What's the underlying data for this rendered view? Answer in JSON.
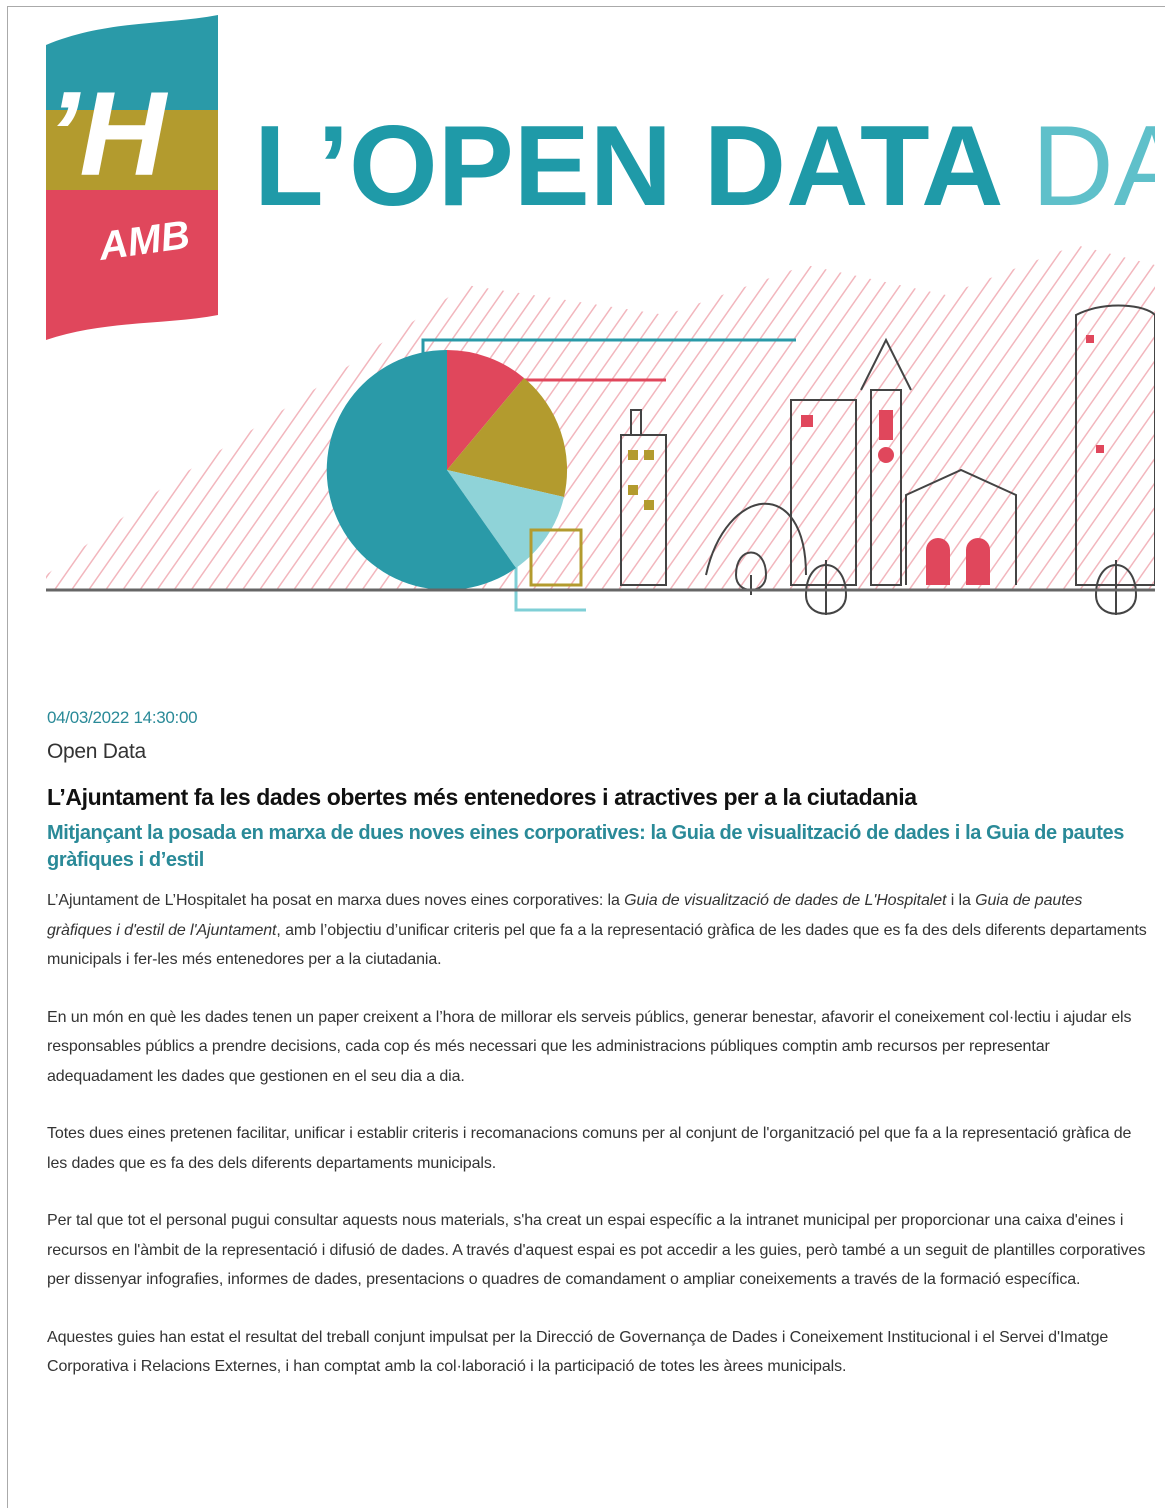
{
  "banner": {
    "logo_mark": "’H",
    "logo_sub": "AMB",
    "title_bold": "L’OPEN DATA",
    "title_light": "DAY"
  },
  "article": {
    "date": "04/03/2022 14:30:00",
    "category": "Open Data",
    "title": "L’Ajuntament fa les dades obertes més entenedores i atractives per a la ciutadania",
    "subtitle": "Mitjançant la posada en marxa de dues noves eines corporatives: la Guia de visualització de dades i la Guia de pautes gràfiques i d’estil",
    "paragraphs": [
      [
        {
          "text": "L’Ajuntament de L’Hospitalet ha posat en marxa  dues noves eines corporatives: la "
        },
        {
          "text": "Guia de visualització de dades de L'Hospitalet",
          "italic": true
        },
        {
          "text": " i la "
        },
        {
          "text": "Guia de pautes gràfiques i d'estil de l'Ajuntament",
          "italic": true
        },
        {
          "text": ", amb l’objectiu d’unificar criteris pel que fa a la representació gràfica de les dades que es fa des dels diferents departaments municipals i fer-les més entenedores per a la ciutadania."
        }
      ],
      [
        {
          "text": "En un món en què les dades tenen un paper creixent a l’hora de millorar els serveis públics, generar benestar, afavorir el coneixement col·lectiu i ajudar els responsables públics a prendre decisions, cada cop és més necessari que les administracions públiques comptin amb recursos per representar adequadament les dades que gestionen en el seu dia a dia."
        }
      ],
      [
        {
          "text": "Totes dues eines pretenen facilitar, unificar i establir criteris i recomanacions comuns per al conjunt de l'organització pel que fa a la representació gràfica de les dades que es fa des dels diferents departaments municipals."
        }
      ],
      [
        {
          "text": "Per tal que tot el personal pugui consultar aquests nous materials, s'ha creat un espai específic a la intranet municipal per proporcionar una caixa d'eines i recursos en l'àmbit de la representació i difusió de dades. A través d'aquest espai es pot accedir a les guies, però també a un seguit de plantilles corporatives per dissenyar infografies, informes de dades, presentacions o quadres de comandament o ampliar coneixements a través de la formació específica."
        }
      ],
      [
        {
          "text": "Aquestes guies han estat el resultat del treball conjunt impulsat per la Direcció de Governança de Dades i Coneixement Institucional i el Servei d'Imatge Corporativa i Relacions Externes, i han comptat amb la col·laboració i la participació de totes les àrees municipals."
        }
      ]
    ]
  }
}
